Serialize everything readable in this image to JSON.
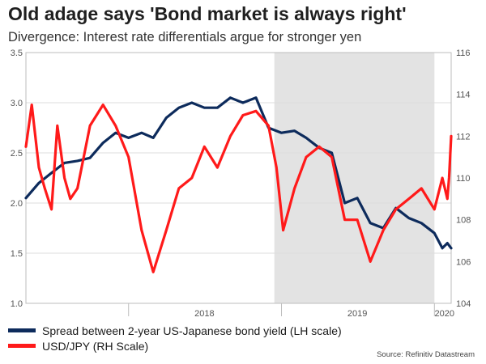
{
  "header": {
    "title": "Old adage says 'Bond market is always right'",
    "subtitle": "Divergence: Interest rate differentials argue for stronger yen"
  },
  "legend": {
    "items": [
      {
        "label": "Spread between 2-year US-Japanese bond yield (LH scale)",
        "color": "#0d2b5c"
      },
      {
        "label": "USD/JPY (RH Scale)",
        "color": "#ff1a1a"
      }
    ]
  },
  "source": "Source: Refinitiv Datastream",
  "colors": {
    "spread": "#0d2b5c",
    "usdjpy": "#ff1a1a",
    "shade": "#e3e3e3"
  },
  "chart_data": {
    "type": "line",
    "title": "Old adage says 'Bond market is always right'",
    "subtitle": "Divergence: Interest rate differentials argue for stronger yen",
    "x_ticks": [
      "2018",
      "2019",
      "2020"
    ],
    "xlim": [
      "2017-05-01",
      "2020-02-10"
    ],
    "shaded_region": [
      "2018-12-15",
      "2020-01-01"
    ],
    "y_left": {
      "ylim": [
        1.0,
        3.5
      ],
      "ticks": [
        "1.0",
        "1.5",
        "2.0",
        "2.5",
        "3.0",
        "3.5"
      ]
    },
    "y_right": {
      "ylim": [
        104,
        116
      ],
      "ticks": [
        "104",
        "106",
        "108",
        "110",
        "112",
        "114",
        "116"
      ]
    },
    "grid": true,
    "legend_position": "bottom-left",
    "series": [
      {
        "name": "Spread between 2-year US-Japanese bond yield (LH scale)",
        "axis": "left",
        "points": [
          [
            "2017-05-01",
            2.05
          ],
          [
            "2017-06-01",
            2.2
          ],
          [
            "2017-07-01",
            2.3
          ],
          [
            "2017-08-01",
            2.4
          ],
          [
            "2017-09-01",
            2.42
          ],
          [
            "2017-10-01",
            2.45
          ],
          [
            "2017-11-01",
            2.6
          ],
          [
            "2017-12-01",
            2.7
          ],
          [
            "2018-01-01",
            2.65
          ],
          [
            "2018-02-01",
            2.7
          ],
          [
            "2018-03-01",
            2.65
          ],
          [
            "2018-04-01",
            2.85
          ],
          [
            "2018-05-01",
            2.95
          ],
          [
            "2018-06-01",
            3.0
          ],
          [
            "2018-07-01",
            2.95
          ],
          [
            "2018-08-01",
            2.95
          ],
          [
            "2018-09-01",
            3.05
          ],
          [
            "2018-10-01",
            3.0
          ],
          [
            "2018-11-01",
            3.05
          ],
          [
            "2018-12-01",
            2.75
          ],
          [
            "2019-01-01",
            2.7
          ],
          [
            "2019-02-01",
            2.72
          ],
          [
            "2019-03-01",
            2.65
          ],
          [
            "2019-04-01",
            2.55
          ],
          [
            "2019-05-01",
            2.5
          ],
          [
            "2019-06-01",
            2.0
          ],
          [
            "2019-07-01",
            2.05
          ],
          [
            "2019-08-01",
            1.8
          ],
          [
            "2019-09-01",
            1.75
          ],
          [
            "2019-10-01",
            1.95
          ],
          [
            "2019-11-01",
            1.85
          ],
          [
            "2019-12-01",
            1.8
          ],
          [
            "2020-01-01",
            1.7
          ],
          [
            "2020-01-20",
            1.55
          ],
          [
            "2020-02-01",
            1.6
          ],
          [
            "2020-02-10",
            1.55
          ]
        ]
      },
      {
        "name": "USD/JPY (RH Scale)",
        "axis": "right",
        "points": [
          [
            "2017-05-01",
            111.5
          ],
          [
            "2017-05-15",
            113.5
          ],
          [
            "2017-06-01",
            110.5
          ],
          [
            "2017-06-15",
            109.5
          ],
          [
            "2017-07-01",
            108.5
          ],
          [
            "2017-07-15",
            112.5
          ],
          [
            "2017-08-01",
            110.0
          ],
          [
            "2017-08-15",
            109.0
          ],
          [
            "2017-09-01",
            109.5
          ],
          [
            "2017-10-01",
            112.5
          ],
          [
            "2017-11-01",
            113.5
          ],
          [
            "2017-12-01",
            112.5
          ],
          [
            "2018-01-01",
            111.0
          ],
          [
            "2018-02-01",
            107.5
          ],
          [
            "2018-03-01",
            105.5
          ],
          [
            "2018-04-01",
            107.5
          ],
          [
            "2018-05-01",
            109.5
          ],
          [
            "2018-06-01",
            110.0
          ],
          [
            "2018-07-01",
            111.5
          ],
          [
            "2018-08-01",
            110.5
          ],
          [
            "2018-09-01",
            112.0
          ],
          [
            "2018-10-01",
            113.0
          ],
          [
            "2018-11-01",
            113.2
          ],
          [
            "2018-12-01",
            112.5
          ],
          [
            "2018-12-20",
            110.5
          ],
          [
            "2019-01-05",
            107.5
          ],
          [
            "2019-02-01",
            109.5
          ],
          [
            "2019-03-01",
            111.0
          ],
          [
            "2019-04-01",
            111.5
          ],
          [
            "2019-05-01",
            111.0
          ],
          [
            "2019-06-01",
            108.0
          ],
          [
            "2019-07-01",
            108.0
          ],
          [
            "2019-08-01",
            106.0
          ],
          [
            "2019-09-01",
            107.5
          ],
          [
            "2019-10-01",
            108.5
          ],
          [
            "2019-11-01",
            109.0
          ],
          [
            "2019-12-01",
            109.5
          ],
          [
            "2020-01-01",
            108.5
          ],
          [
            "2020-01-20",
            110.0
          ],
          [
            "2020-02-01",
            109.0
          ],
          [
            "2020-02-05",
            110.0
          ],
          [
            "2020-02-10",
            112.0
          ]
        ]
      }
    ]
  }
}
